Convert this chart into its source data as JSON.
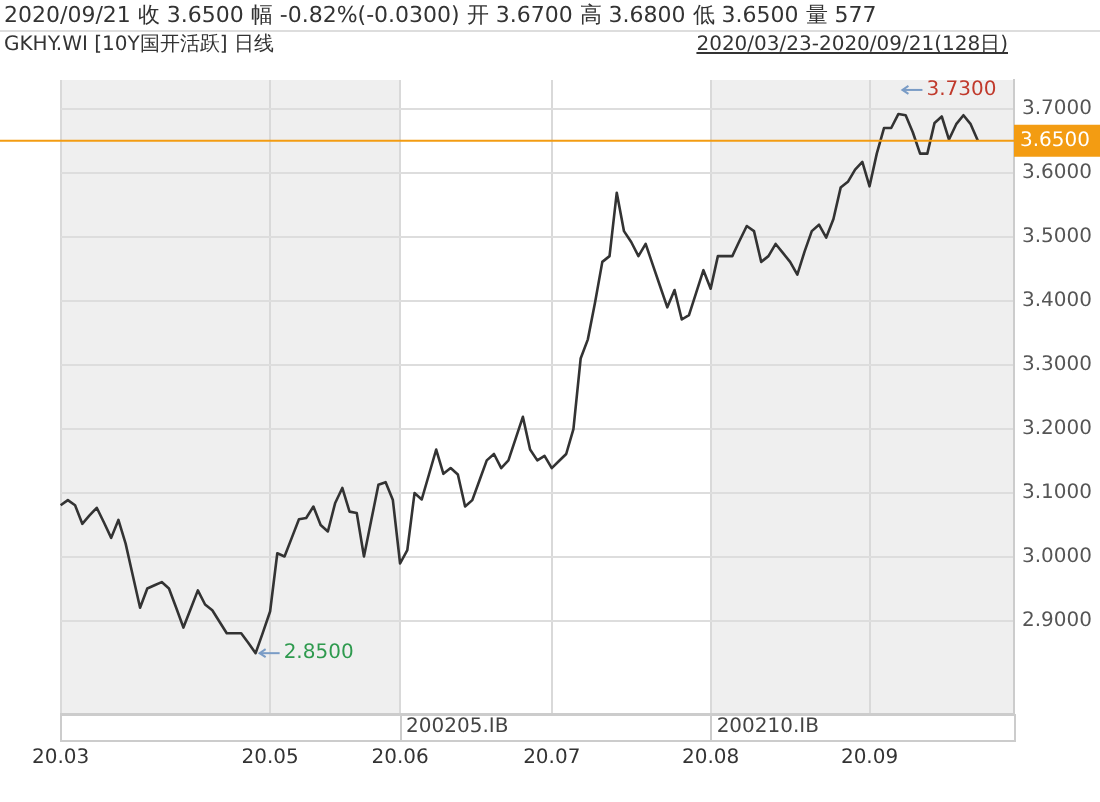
{
  "chart_data": {
    "type": "line",
    "title": "2020/09/21  收 3.6500  幅 -0.82%(-0.0300)  开 3.6700  高 3.6800  低 3.6500  量 577",
    "subtitle": "GKHY.WI [10Y国开活跃] 日线",
    "annotations": [
      "2020/03/23-2020/09/21(128日)",
      "3.7300",
      "2.8500",
      "200205.IB",
      "200210.IB"
    ],
    "categories": [
      "20.03",
      null,
      null,
      null,
      null,
      null,
      null,
      null,
      null,
      null,
      null,
      null,
      null,
      null,
      null,
      null,
      null,
      null,
      null,
      null,
      null,
      null,
      null,
      null,
      null,
      null,
      null,
      null,
      null,
      "20.05",
      null,
      null,
      null,
      null,
      null,
      null,
      null,
      null,
      null,
      null,
      null,
      null,
      null,
      null,
      null,
      null,
      null,
      "20.06",
      null,
      null,
      null,
      null,
      null,
      null,
      null,
      null,
      null,
      null,
      null,
      null,
      null,
      null,
      null,
      null,
      null,
      null,
      null,
      null,
      "20.07",
      null,
      null,
      null,
      null,
      null,
      null,
      null,
      null,
      null,
      null,
      null,
      null,
      null,
      null,
      null,
      null,
      null,
      null,
      null,
      null,
      null,
      "20.08",
      null,
      null,
      null,
      null,
      null,
      null,
      null,
      null,
      null,
      null,
      null,
      null,
      null,
      null,
      null,
      null,
      null,
      null,
      null,
      null,
      null,
      "20.09",
      null,
      null,
      null,
      null,
      null,
      null,
      null,
      null,
      null,
      null,
      null,
      null,
      null,
      null,
      null,
      null,
      null,
      null,
      null,
      null
    ],
    "series": [
      {
        "color": "#333333",
        "values": [
          3.081,
          3.089,
          3.081,
          3.052,
          3.065,
          3.077,
          3.054,
          3.03,
          3.058,
          3.021,
          2.971,
          2.921,
          2.951,
          2.956,
          2.961,
          2.951,
          2.921,
          2.89,
          2.919,
          2.948,
          2.926,
          2.917,
          2.899,
          2.881,
          2.881,
          2.881,
          2.866,
          2.85,
          2.882,
          2.915,
          3.006,
          3.001,
          3.03,
          3.059,
          3.061,
          3.079,
          3.05,
          3.04,
          3.084,
          3.108,
          3.071,
          3.069,
          3.001,
          3.057,
          3.113,
          3.117,
          3.089,
          2.99,
          3.011,
          3.1,
          3.09,
          3.129,
          3.168,
          3.13,
          3.139,
          3.129,
          3.079,
          3.089,
          3.12,
          3.151,
          3.161,
          3.139,
          3.151,
          3.185,
          3.219,
          3.168,
          3.151,
          3.158,
          3.139,
          3.15,
          3.161,
          3.2,
          3.31,
          3.34,
          3.398,
          3.461,
          3.47,
          3.569,
          3.509,
          3.492,
          3.47,
          3.489,
          3.456,
          3.423,
          3.39,
          3.417,
          3.371,
          3.378,
          3.413,
          3.448,
          3.419,
          3.47,
          3.47,
          3.47,
          3.494,
          3.517,
          3.509,
          3.461,
          3.47,
          3.489,
          3.475,
          3.461,
          3.441,
          3.477,
          3.509,
          3.519,
          3.499,
          3.528,
          3.577,
          3.586,
          3.605,
          3.617,
          3.579,
          3.63,
          3.67,
          3.67,
          3.692,
          3.69,
          3.663,
          3.63,
          3.63,
          3.678,
          3.688,
          3.652,
          3.676,
          3.69,
          3.676,
          3.65,
          null,
          null,
          null,
          null,
          null
        ]
      }
    ],
    "ylim": [
      2.755,
      3.745
    ],
    "yticks": [
      {
        "value": 2.9,
        "label": "2.9000"
      },
      {
        "value": 3.0,
        "label": "3.0000"
      },
      {
        "value": 3.1,
        "label": "3.1000"
      },
      {
        "value": 3.2,
        "label": "3.2000"
      },
      {
        "value": 3.3,
        "label": "3.3000"
      },
      {
        "value": 3.4,
        "label": "3.4000"
      },
      {
        "value": 3.5,
        "label": "3.5000"
      },
      {
        "value": 3.6,
        "label": "3.6000"
      },
      {
        "value": 3.7,
        "label": "3.7000"
      }
    ],
    "ref_lines": [
      {
        "axis": "y",
        "value": 3.65,
        "label": "3.6500",
        "color": "#f39c12"
      }
    ],
    "grid": true,
    "legend": false,
    "marker": "none",
    "line_style": "solid"
  }
}
